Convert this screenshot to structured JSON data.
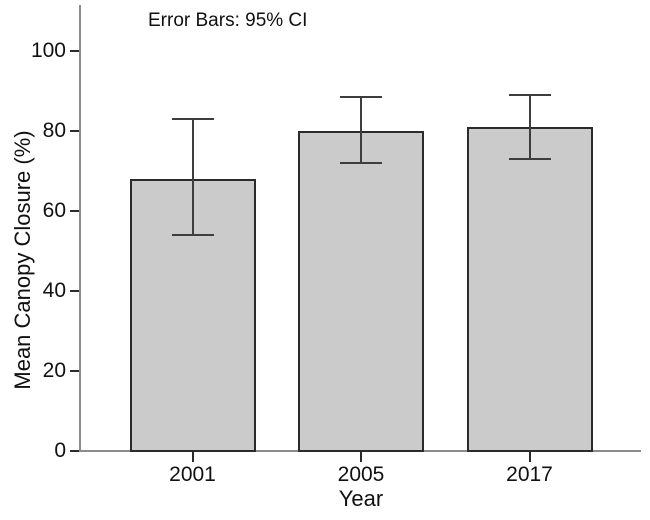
{
  "chart_data": {
    "type": "bar",
    "title": "",
    "annotation": "Error Bars: 95% CI",
    "xlabel": "Year",
    "ylabel": "Mean Canopy Closure (%)",
    "categories": [
      "2001",
      "2005",
      "2017"
    ],
    "series": [
      {
        "name": "Mean Canopy Closure (%)",
        "values": [
          68,
          80,
          81
        ]
      }
    ],
    "error_bars": {
      "label": "95% CI",
      "lower": [
        54,
        72,
        73
      ],
      "upper": [
        83,
        88.5,
        89
      ]
    },
    "ylim": [
      0,
      110
    ],
    "yticks": [
      0,
      20,
      40,
      60,
      80,
      100
    ],
    "grid": false,
    "legend_position": "none",
    "colors": {
      "background": "#ffffff",
      "bar_fill": "#cbcbcb",
      "bar_border": "#2b2b2b",
      "error_bar": "#3d3d3d",
      "axis_line": "#8c8c8c",
      "tick_mark": "#2b2b2b",
      "text": "#111111"
    }
  }
}
